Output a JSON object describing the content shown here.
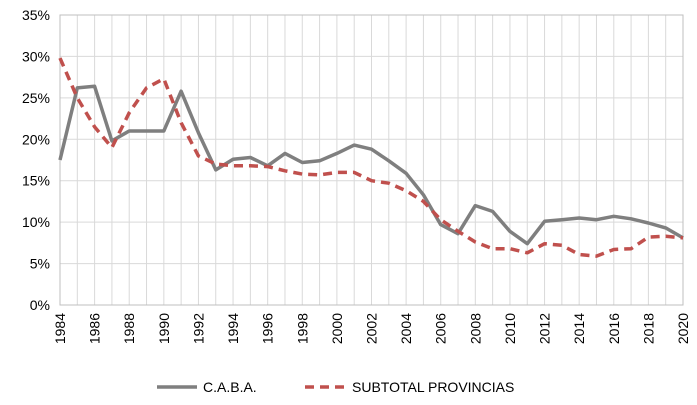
{
  "chart_data": {
    "type": "line",
    "title": "",
    "xlabel": "",
    "ylabel": "",
    "x": [
      1984,
      1985,
      1986,
      1987,
      1988,
      1989,
      1990,
      1991,
      1992,
      1993,
      1994,
      1995,
      1996,
      1997,
      1998,
      1999,
      2000,
      2001,
      2002,
      2003,
      2004,
      2005,
      2006,
      2007,
      2008,
      2009,
      2010,
      2011,
      2012,
      2013,
      2014,
      2015,
      2016,
      2017,
      2018,
      2019,
      2020
    ],
    "x_tick_labels": [
      "1984",
      "1986",
      "1988",
      "1990",
      "1992",
      "1994",
      "1996",
      "1998",
      "2000",
      "2002",
      "2004",
      "2006",
      "2008",
      "2010",
      "2012",
      "2014",
      "2016",
      "2018",
      "2020"
    ],
    "y_tick_labels": [
      "0%",
      "5%",
      "10%",
      "15%",
      "20%",
      "25%",
      "30%",
      "35%"
    ],
    "ylim": [
      0,
      35
    ],
    "grid": true,
    "legend_position": "bottom",
    "series": [
      {
        "name": "C.A.B.A.",
        "color": "#7f7f7f",
        "style": "solid",
        "values": [
          17.5,
          26.2,
          26.4,
          19.8,
          21.0,
          21.0,
          21.0,
          25.8,
          20.8,
          16.3,
          17.6,
          17.8,
          16.8,
          18.3,
          17.2,
          17.4,
          18.3,
          19.3,
          18.8,
          17.4,
          15.9,
          13.3,
          9.7,
          8.6,
          12.0,
          11.3,
          8.9,
          7.4,
          10.1,
          10.3,
          10.5,
          10.3,
          10.7,
          10.4,
          9.9,
          9.3,
          8.1
        ]
      },
      {
        "name": "SUBTOTAL PROVINCIAS",
        "color": "#c0504d",
        "style": "dashed",
        "values": [
          29.8,
          25.0,
          21.5,
          19.0,
          23.2,
          26.2,
          27.3,
          22.0,
          18.0,
          17.0,
          16.8,
          16.8,
          16.7,
          16.2,
          15.8,
          15.7,
          16.0,
          16.0,
          15.0,
          14.7,
          13.8,
          12.5,
          10.3,
          8.9,
          7.6,
          6.8,
          6.8,
          6.3,
          7.4,
          7.2,
          6.1,
          5.9,
          6.7,
          6.8,
          8.2,
          8.3,
          8.1
        ]
      }
    ]
  }
}
